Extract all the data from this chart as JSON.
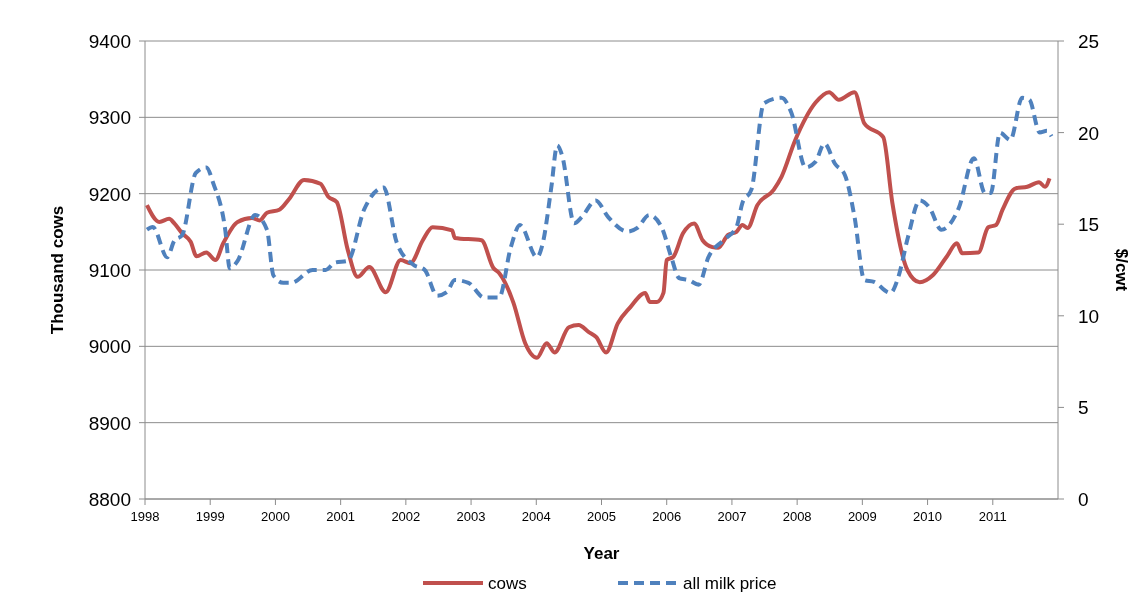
{
  "chart_data": {
    "type": "line",
    "xlabel": "Year",
    "ylabel": "Thousand cows",
    "y2label": "$/cwt",
    "xlim": [
      1998,
      2012
    ],
    "xticks": [
      1998,
      1999,
      2000,
      2001,
      2002,
      2003,
      2004,
      2005,
      2006,
      2007,
      2008,
      2009,
      2010,
      2011
    ],
    "ylim": [
      8800,
      9400
    ],
    "yticks": [
      8800,
      8900,
      9000,
      9100,
      9200,
      9300,
      9400
    ],
    "y2lim": [
      0,
      25
    ],
    "y2ticks": [
      0,
      5,
      10,
      15,
      20,
      25
    ],
    "grid": "y",
    "legend": "bottom",
    "series": [
      {
        "name": "cows",
        "color": "#c0504d",
        "line_style": "solid",
        "x": [
          1998.03,
          1998.22,
          1998.37,
          1998.45,
          1998.57,
          1998.7,
          1998.79,
          1998.94,
          1999.08,
          1999.2,
          1999.42,
          1999.64,
          1999.76,
          1999.87,
          2000.06,
          2000.21,
          2000.44,
          2000.69,
          2000.81,
          2000.94,
          2001.11,
          2001.26,
          2001.44,
          2001.69,
          2001.92,
          2002.07,
          2002.26,
          2002.41,
          2002.71,
          2002.75,
          2003.16,
          2003.34,
          2003.43,
          2003.65,
          2003.83,
          2004.01,
          2004.16,
          2004.28,
          2004.5,
          2004.65,
          2004.8,
          2004.92,
          2005.07,
          2005.25,
          2005.44,
          2005.67,
          2005.74,
          2005.85,
          2005.95,
          2006,
          2006.1,
          2006.25,
          2006.42,
          2006.55,
          2006.7,
          2006.79,
          2006.94,
          2007.07,
          2007.16,
          2007.24,
          2007.39,
          2007.64,
          2007.76,
          2007.97,
          2008.28,
          2008.49,
          2008.64,
          2008.88,
          2009.03,
          2009.32,
          2009.46,
          2009.69,
          2009.88,
          2010.08,
          2010.29,
          2010.45,
          2010.53,
          2010.78,
          2010.93,
          2011.05,
          2011.15,
          2011.35,
          2011.53,
          2011.71,
          2011.8,
          2011.87
        ],
        "values": [
          9185,
          9163,
          9167,
          9161,
          9148,
          9137,
          9118,
          9123,
          9113,
          9135,
          9163,
          9168,
          9165,
          9175,
          9179,
          9193,
          9218,
          9213,
          9196,
          9189,
          9126,
          9091,
          9104,
          9071,
          9113,
          9109,
          9139,
          9156,
          9152,
          9142,
          9139,
          9103,
          9096,
          9057,
          9004,
          8985,
          9004,
          8992,
          9025,
          9028,
          9019,
          9012,
          8992,
          9030,
          9051,
          9070,
          9058,
          9058,
          9070,
          9113,
          9117,
          9148,
          9161,
          9139,
          9130,
          9129,
          9146,
          9150,
          9159,
          9155,
          9185,
          9205,
          9222,
          9270,
          9319,
          9333,
          9323,
          9333,
          9292,
          9274,
          9188,
          9100,
          9084,
          9093,
          9117,
          9135,
          9122,
          9123,
          9156,
          9159,
          9179,
          9207,
          9209,
          9215,
          9209,
          9220
        ]
      },
      {
        "name": "all milk price",
        "color": "#4f81bd",
        "line_style": "dashed",
        "axis": "y2",
        "x": [
          1998.03,
          1998.12,
          1998.34,
          1998.45,
          1998.57,
          1998.78,
          1998.94,
          1999.05,
          1999.23,
          1999.3,
          1999.42,
          1999.69,
          1999.87,
          1999.97,
          2000.12,
          2000.24,
          2000.57,
          2000.77,
          2000.91,
          2001.11,
          2001.36,
          2001.66,
          2001.86,
          2002.11,
          2002.29,
          2002.48,
          2002.63,
          2002.75,
          2002.96,
          2003.2,
          2003.43,
          2003.61,
          2003.75,
          2004.01,
          2004.1,
          2004.23,
          2004.32,
          2004.4,
          2004.58,
          2004.7,
          2004.91,
          2005.1,
          2005.4,
          2005.55,
          2005.73,
          2005.92,
          2006.07,
          2006.19,
          2006.34,
          2006.49,
          2006.64,
          2006.86,
          2007.07,
          2007.16,
          2007.3,
          2007.49,
          2007.76,
          2007.91,
          2008.13,
          2008.28,
          2008.42,
          2008.58,
          2008.73,
          2008.88,
          2009.03,
          2009.18,
          2009.43,
          2009.55,
          2009.7,
          2009.88,
          2010.03,
          2010.21,
          2010.48,
          2010.71,
          2010.88,
          2010.97,
          2011.11,
          2011.27,
          2011.45,
          2011.56,
          2011.72,
          2011.83,
          2011.9
        ],
        "values": [
          14.7,
          14.85,
          13.2,
          14.1,
          14.4,
          17.8,
          18.1,
          17.2,
          14.7,
          12.6,
          13,
          15.5,
          14.7,
          12.2,
          11.8,
          11.8,
          12.5,
          12.5,
          12.9,
          13,
          15.8,
          17,
          14,
          12.8,
          12.5,
          11.1,
          11.3,
          11.95,
          11.8,
          11,
          11,
          13.75,
          14.95,
          13.2,
          13.97,
          17,
          19.3,
          18.7,
          15.05,
          15.4,
          16.3,
          15.4,
          14.6,
          14.8,
          15.5,
          14.85,
          13.2,
          12.06,
          11.95,
          11.7,
          13.2,
          14.1,
          14.85,
          16.15,
          16.9,
          21.6,
          21.9,
          21.1,
          18.1,
          18.4,
          19.4,
          18.3,
          17.7,
          15.4,
          11.95,
          11.85,
          11.25,
          12.1,
          14.3,
          16.3,
          15.9,
          14.7,
          15.9,
          18.6,
          16.7,
          16.7,
          20,
          19.6,
          21.9,
          21.8,
          20,
          20.1,
          19.8
        ]
      }
    ]
  }
}
